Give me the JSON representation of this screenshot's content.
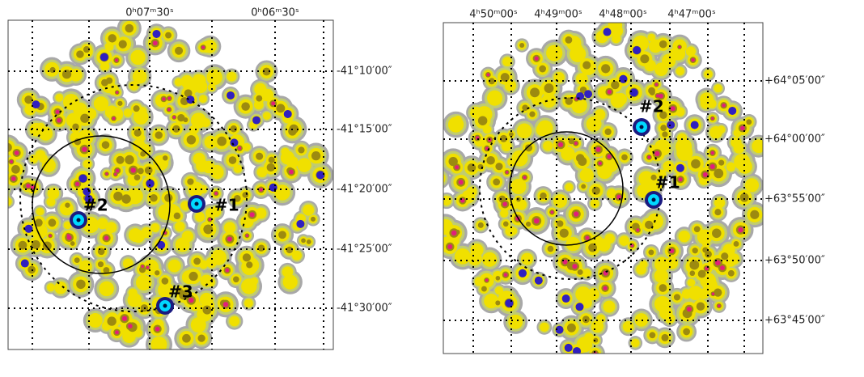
{
  "panels": [
    {
      "ra_labels": [
        "0ʰ07ᵐ30ˢ",
        "0ʰ06ᵐ30ˢ"
      ],
      "dec_labels": [
        "-41°10′00″",
        "-41°15′00″",
        "-41°20′00″",
        "-41°25′00″",
        "-41°30′00″"
      ],
      "sources": [
        "#1",
        "#2",
        "#3"
      ]
    },
    {
      "ra_labels": [
        "4ʰ50ᵐ00ˢ",
        "4ʰ49ᵐ00ˢ",
        "4ʰ48ᵐ00ˢ",
        "4ʰ47ᵐ00ˢ"
      ],
      "dec_labels": [
        "+64°05′00″",
        "+64°00′00″",
        "+63°55′00″",
        "+63°50′00″",
        "+63°45′00″"
      ],
      "sources": [
        "#1",
        "#2"
      ]
    }
  ]
}
